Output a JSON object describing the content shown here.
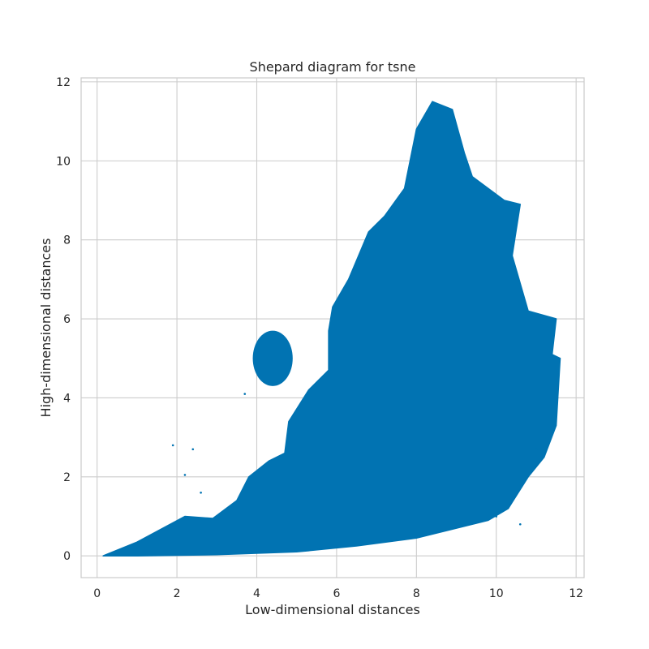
{
  "chart_data": {
    "type": "scatter",
    "title": "Shepard diagram for tsne",
    "xlabel": "Low-dimensional distances",
    "ylabel": "High-dimensional distances",
    "xlim": [
      -0.4,
      12.2
    ],
    "ylim": [
      -0.55,
      12.1
    ],
    "x_ticks": [
      0,
      2,
      4,
      6,
      8,
      10,
      12
    ],
    "y_ticks": [
      0,
      2,
      4,
      6,
      8,
      10,
      12
    ],
    "grid": true,
    "color": "#0173b2",
    "density_region": {
      "description": "dense point cloud envelope (x, y in data units)",
      "upper_boundary": [
        [
          0.15,
          0.0
        ],
        [
          1.0,
          0.35
        ],
        [
          2.2,
          1.0
        ],
        [
          2.9,
          0.95
        ],
        [
          3.5,
          1.4
        ],
        [
          3.8,
          2.0
        ],
        [
          4.3,
          2.4
        ],
        [
          4.7,
          2.6
        ],
        [
          4.8,
          3.4
        ],
        [
          5.3,
          4.2
        ],
        [
          5.8,
          4.7
        ],
        [
          5.8,
          5.7
        ],
        [
          5.9,
          6.3
        ],
        [
          6.3,
          7.0
        ],
        [
          6.8,
          8.2
        ],
        [
          7.2,
          8.6
        ],
        [
          7.7,
          9.3
        ],
        [
          8.0,
          10.8
        ],
        [
          8.4,
          11.5
        ],
        [
          8.9,
          11.3
        ],
        [
          9.2,
          10.2
        ],
        [
          9.4,
          9.6
        ],
        [
          10.2,
          9.0
        ],
        [
          10.6,
          8.9
        ],
        [
          10.4,
          7.6
        ],
        [
          10.8,
          6.2
        ],
        [
          11.5,
          6.0
        ],
        [
          11.4,
          5.1
        ],
        [
          11.6,
          5.0
        ],
        [
          11.5,
          3.3
        ],
        [
          11.2,
          2.5
        ],
        [
          10.8,
          2.0
        ],
        [
          10.3,
          1.2
        ],
        [
          9.8,
          0.9
        ],
        [
          9.0,
          0.7
        ],
        [
          8.0,
          0.45
        ],
        [
          6.5,
          0.25
        ],
        [
          5.0,
          0.1
        ],
        [
          3.0,
          0.03
        ],
        [
          1.0,
          0.0
        ],
        [
          0.15,
          0.0
        ]
      ],
      "secondary_cluster": {
        "x_range": [
          3.9,
          4.9
        ],
        "y_range": [
          4.3,
          5.7
        ]
      }
    },
    "outliers": [
      {
        "x": 1.9,
        "y": 2.8
      },
      {
        "x": 2.4,
        "y": 2.7
      },
      {
        "x": 2.2,
        "y": 2.05
      },
      {
        "x": 2.6,
        "y": 1.6
      },
      {
        "x": 3.7,
        "y": 4.1
      },
      {
        "x": 10.6,
        "y": 0.8
      },
      {
        "x": 10.4,
        "y": 1.4
      },
      {
        "x": 10.0,
        "y": 1.0
      },
      {
        "x": 11.0,
        "y": 2.7
      }
    ]
  }
}
